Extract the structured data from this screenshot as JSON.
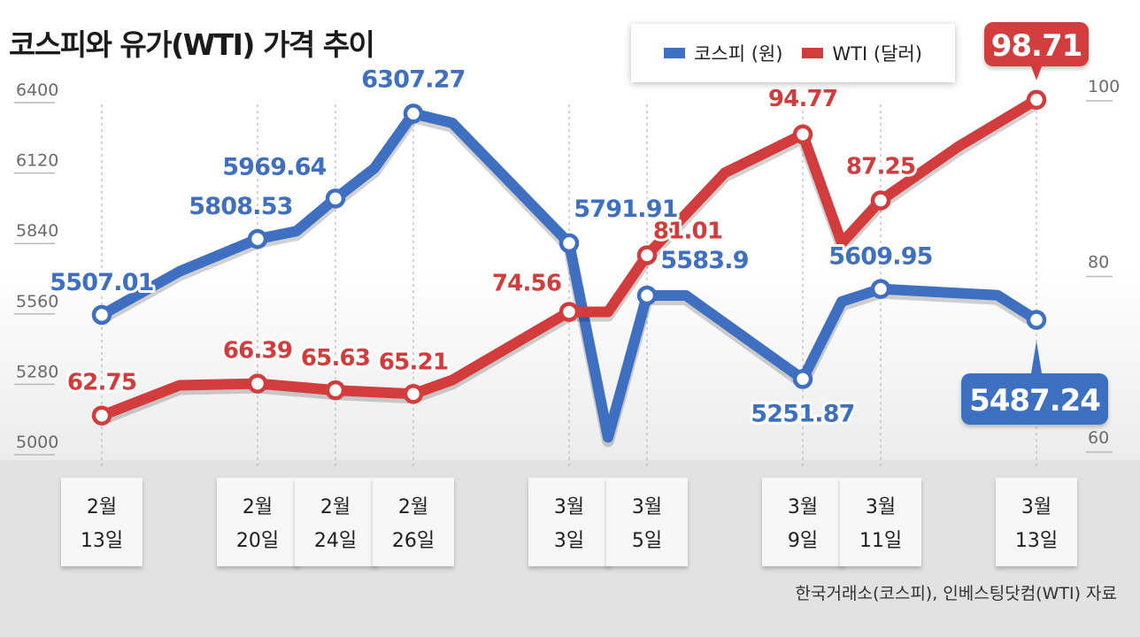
{
  "title": "코스피와 유가(WTI) 가격 추이",
  "legend": [
    {
      "label": "코스피 (원)",
      "color": "#3e6fc0"
    },
    {
      "label": "WTI (달러)",
      "color": "#d33c3c"
    }
  ],
  "source": "한국거래소(코스피), 인베스팅닷컴(WTI) 자료",
  "chart_data": {
    "type": "line",
    "x_tick_labels": [
      [
        "2월",
        "13일"
      ],
      [
        "2월",
        "20일"
      ],
      [
        "2월",
        "24일"
      ],
      [
        "2월",
        "26일"
      ],
      [
        "3월",
        "3일"
      ],
      [
        "3월",
        "5일"
      ],
      [
        "3월",
        "9일"
      ],
      [
        "3월",
        "11일"
      ],
      [
        "3월",
        "13일"
      ]
    ],
    "x_tick_positions": [
      0,
      4,
      6,
      8,
      12,
      14,
      18,
      20,
      24
    ],
    "y_left": {
      "ticks": [
        5000,
        5280,
        5560,
        5840,
        6120,
        6400
      ],
      "tick_labels": [
        "5000",
        "5280",
        "5560",
        "5840",
        "6120",
        "6400"
      ],
      "range": [
        5000,
        6400
      ]
    },
    "y_right": {
      "ticks": [
        60,
        80,
        100
      ],
      "tick_labels": [
        "60",
        "80",
        "100"
      ],
      "range": [
        60,
        100
      ]
    },
    "grid": false,
    "series": [
      {
        "name": "코스피 (원)",
        "color": "#3e6fc0",
        "axis": "left",
        "points": [
          {
            "x": 0,
            "y": 5507.01
          },
          {
            "x": 2,
            "y": 5680
          },
          {
            "x": 4,
            "y": 5808.53
          },
          {
            "x": 5,
            "y": 5840
          },
          {
            "x": 6,
            "y": 5969.64
          },
          {
            "x": 7,
            "y": 6090
          },
          {
            "x": 8,
            "y": 6307.27
          },
          {
            "x": 9,
            "y": 6270
          },
          {
            "x": 12,
            "y": 5791.91
          },
          {
            "x": 13,
            "y": 5020
          },
          {
            "x": 14,
            "y": 5583.9
          },
          {
            "x": 15,
            "y": 5583.9
          },
          {
            "x": 18,
            "y": 5251.87
          },
          {
            "x": 19,
            "y": 5560
          },
          {
            "x": 20,
            "y": 5609.95
          },
          {
            "x": 23,
            "y": 5585
          },
          {
            "x": 24,
            "y": 5487.24
          }
        ],
        "labels": [
          {
            "x": 0,
            "text": "5507.01"
          },
          {
            "x": 4,
            "text": "5808.53"
          },
          {
            "x": 6,
            "text": "5969.64"
          },
          {
            "x": 8,
            "text": "6307.27"
          },
          {
            "x": 12,
            "text": "5791.91"
          },
          {
            "x": 14,
            "text": "5583.9"
          },
          {
            "x": 18,
            "text": "5251.87"
          },
          {
            "x": 20,
            "text": "5609.95"
          },
          {
            "x": 24,
            "text": "5487.24"
          }
        ]
      },
      {
        "name": "WTI (달러)",
        "color": "#d33c3c",
        "axis": "right",
        "points": [
          {
            "x": 0,
            "y": 62.75
          },
          {
            "x": 2,
            "y": 66.2
          },
          {
            "x": 4,
            "y": 66.39
          },
          {
            "x": 6,
            "y": 65.63
          },
          {
            "x": 8,
            "y": 65.21
          },
          {
            "x": 9,
            "y": 66.8
          },
          {
            "x": 12,
            "y": 74.56
          },
          {
            "x": 13,
            "y": 74.56
          },
          {
            "x": 14,
            "y": 81.01
          },
          {
            "x": 16,
            "y": 90.4
          },
          {
            "x": 18,
            "y": 94.77
          },
          {
            "x": 19,
            "y": 82.4
          },
          {
            "x": 20,
            "y": 87.25
          },
          {
            "x": 22,
            "y": 93.4
          },
          {
            "x": 24,
            "y": 98.71
          }
        ],
        "labels": [
          {
            "x": 0,
            "text": "62.75"
          },
          {
            "x": 4,
            "text": "66.39"
          },
          {
            "x": 6,
            "text": "65.63"
          },
          {
            "x": 8,
            "text": "65.21"
          },
          {
            "x": 12,
            "text": "74.56"
          },
          {
            "x": 14,
            "text": "81.01"
          },
          {
            "x": 18,
            "text": "94.77"
          },
          {
            "x": 20,
            "text": "87.25"
          },
          {
            "x": 24,
            "text": "98.71"
          }
        ]
      }
    ],
    "highlighted_last_values": [
      "98.71",
      "5487.24"
    ]
  }
}
